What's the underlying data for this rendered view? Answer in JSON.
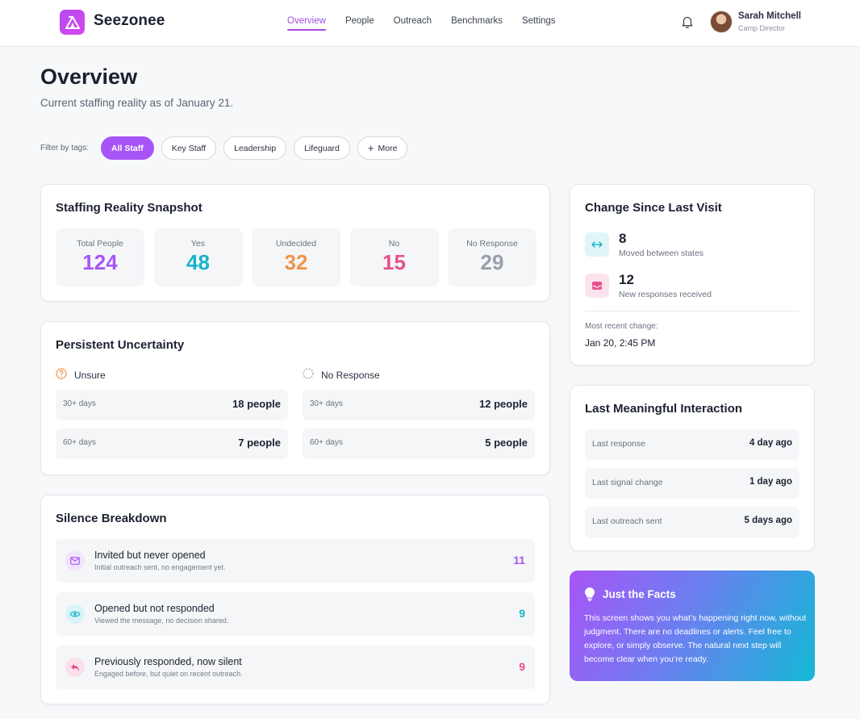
{
  "app": {
    "name": "Seezonee",
    "logo_icon": "camp-tent-icon"
  },
  "nav": {
    "items": [
      {
        "label": "Overview",
        "active": true
      },
      {
        "label": "People",
        "active": false
      },
      {
        "label": "Outreach",
        "active": false
      },
      {
        "label": "Benchmarks",
        "active": false
      },
      {
        "label": "Settings",
        "active": false
      }
    ]
  },
  "user": {
    "name": "Sarah Mitchell",
    "role": "Camp Director"
  },
  "page": {
    "title": "Overview",
    "subtitle": "Current staffing reality as of January 21."
  },
  "filters": {
    "label": "Filter by tags:",
    "tags": [
      "All Staff",
      "Key Staff",
      "Leadership",
      "Lifeguard"
    ],
    "active_tag": "All Staff",
    "more_label": "More"
  },
  "snapshot": {
    "title": "Staffing Reality Snapshot",
    "stats": [
      {
        "label": "Total People",
        "value": "124",
        "color": "#a855f7"
      },
      {
        "label": "Yes",
        "value": "48",
        "color": "#17b3c9"
      },
      {
        "label": "Undecided",
        "value": "32",
        "color": "#f0944a"
      },
      {
        "label": "No",
        "value": "15",
        "color": "#e8508e"
      },
      {
        "label": "No Response",
        "value": "29",
        "color": "#9aa0aa"
      }
    ]
  },
  "uncertainty": {
    "title": "Persistent Uncertainty",
    "groups": [
      {
        "label": "Unsure",
        "icon": "question-circle-icon",
        "rows": [
          {
            "period": "30+ days",
            "count": "18 people"
          },
          {
            "period": "60+ days",
            "count": "7 people"
          }
        ]
      },
      {
        "label": "No Response",
        "icon": "dashed-circle-icon",
        "rows": [
          {
            "period": "30+ days",
            "count": "12 people"
          },
          {
            "period": "60+ days",
            "count": "5 people"
          }
        ]
      }
    ]
  },
  "silence": {
    "title": "Silence Breakdown",
    "items": [
      {
        "title": "Invited but never opened",
        "desc": "Initial outreach sent, no engagement yet.",
        "count": "11",
        "icon": "envelope-icon",
        "color": "#a855f7"
      },
      {
        "title": "Opened but not responded",
        "desc": "Viewed the message, no decision shared.",
        "count": "9",
        "icon": "eye-icon",
        "color": "#17b3c9"
      },
      {
        "title": "Previously responded, now silent",
        "desc": "Engaged before, but quiet on recent outreach.",
        "count": "9",
        "icon": "reply-icon",
        "color": "#e8508e"
      }
    ]
  },
  "change": {
    "title": "Change Since Last Visit",
    "items": [
      {
        "value": "8",
        "label": "Moved between states",
        "icon": "swap-arrows-icon"
      },
      {
        "value": "12",
        "label": "New responses received",
        "icon": "inbox-icon"
      }
    ],
    "recent_label": "Most recent change:",
    "recent_value": "Jan 20, 2:45 PM"
  },
  "interaction": {
    "title": "Last Meaningful Interaction",
    "rows": [
      {
        "label": "Last response",
        "value": "4 day ago"
      },
      {
        "label": "Last signal change",
        "value": "1 day ago"
      },
      {
        "label": "Last outreach sent",
        "value": "5 days ago"
      }
    ]
  },
  "facts": {
    "title": "Just the Facts",
    "icon": "lightbulb-icon",
    "body": "This screen shows you what’s happening right now, without judgment. There are no deadlines or alerts. Feel free to explore, or simply observe. The natural next step will become clear when you’re ready."
  }
}
